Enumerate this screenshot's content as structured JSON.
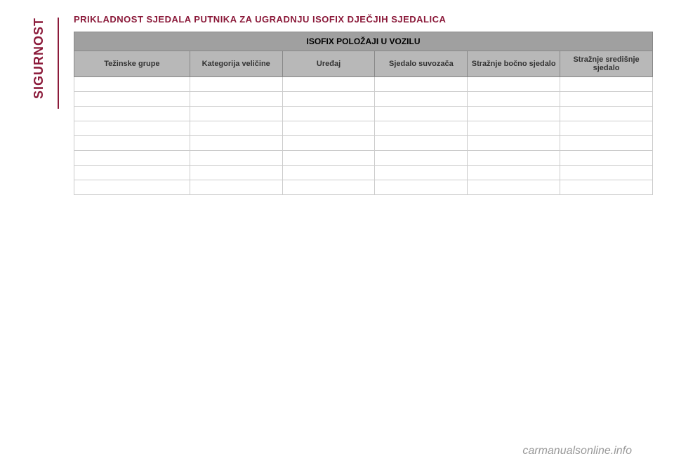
{
  "sidebar": {
    "label": "SIGURNOST"
  },
  "title": "PRIKLADNOST SJEDALA PUTNIKA ZA UGRADNJU ISOFIX DJEČJIH SJEDALICA",
  "table": {
    "main_header": "ISOFIX POLOŽAJI U VOZILU",
    "columns": [
      "Težinske grupe",
      "Kategorija veličine",
      "Uređaj",
      "Sjedalo suvozača",
      "Stražnje bočno sjedalo",
      "Stražnje središnje sjedalo"
    ],
    "col_widths": [
      "20%",
      "16%",
      "16%",
      "16%",
      "16%",
      "16%"
    ],
    "row_count": 8
  },
  "footer": "carmanualsonline.info",
  "colors": {
    "brand": "#8b1a3a",
    "header_bg": "#a0a0a0",
    "subheader_bg": "#b8b8b8",
    "border": "#888",
    "footer_text": "#999"
  }
}
